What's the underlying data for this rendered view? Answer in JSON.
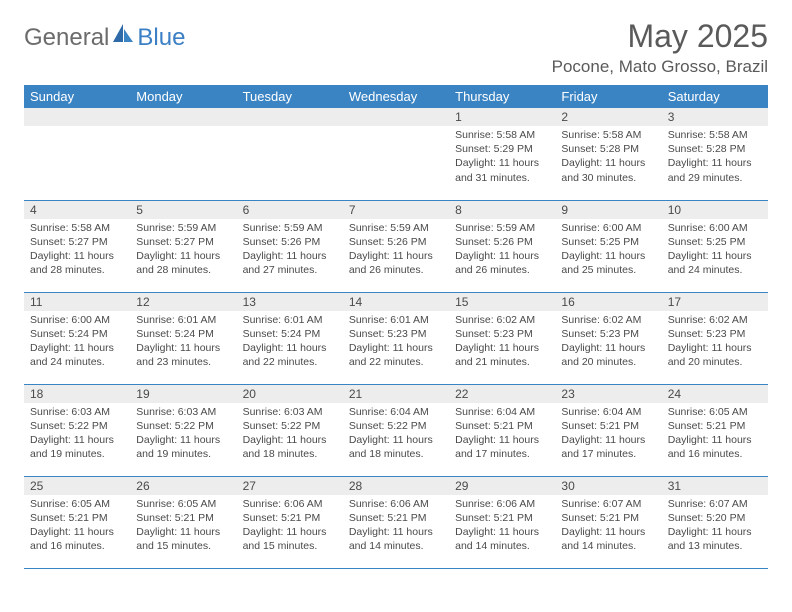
{
  "logo": {
    "text1": "General",
    "text2": "Blue"
  },
  "title": "May 2025",
  "location": "Pocone, Mato Grosso, Brazil",
  "colors": {
    "header_bg": "#3b84c4",
    "header_text": "#ffffff",
    "daynum_bg": "#ededed",
    "text": "#4a4a4a",
    "border": "#3b84c4",
    "logo_gray": "#6b6b6b",
    "logo_blue": "#3b7fc4"
  },
  "weekdays": [
    "Sunday",
    "Monday",
    "Tuesday",
    "Wednesday",
    "Thursday",
    "Friday",
    "Saturday"
  ],
  "weeks": [
    [
      null,
      null,
      null,
      null,
      {
        "n": "1",
        "sr": "Sunrise: 5:58 AM",
        "ss": "Sunset: 5:29 PM",
        "dl": "Daylight: 11 hours and 31 minutes."
      },
      {
        "n": "2",
        "sr": "Sunrise: 5:58 AM",
        "ss": "Sunset: 5:28 PM",
        "dl": "Daylight: 11 hours and 30 minutes."
      },
      {
        "n": "3",
        "sr": "Sunrise: 5:58 AM",
        "ss": "Sunset: 5:28 PM",
        "dl": "Daylight: 11 hours and 29 minutes."
      }
    ],
    [
      {
        "n": "4",
        "sr": "Sunrise: 5:58 AM",
        "ss": "Sunset: 5:27 PM",
        "dl": "Daylight: 11 hours and 28 minutes."
      },
      {
        "n": "5",
        "sr": "Sunrise: 5:59 AM",
        "ss": "Sunset: 5:27 PM",
        "dl": "Daylight: 11 hours and 28 minutes."
      },
      {
        "n": "6",
        "sr": "Sunrise: 5:59 AM",
        "ss": "Sunset: 5:26 PM",
        "dl": "Daylight: 11 hours and 27 minutes."
      },
      {
        "n": "7",
        "sr": "Sunrise: 5:59 AM",
        "ss": "Sunset: 5:26 PM",
        "dl": "Daylight: 11 hours and 26 minutes."
      },
      {
        "n": "8",
        "sr": "Sunrise: 5:59 AM",
        "ss": "Sunset: 5:26 PM",
        "dl": "Daylight: 11 hours and 26 minutes."
      },
      {
        "n": "9",
        "sr": "Sunrise: 6:00 AM",
        "ss": "Sunset: 5:25 PM",
        "dl": "Daylight: 11 hours and 25 minutes."
      },
      {
        "n": "10",
        "sr": "Sunrise: 6:00 AM",
        "ss": "Sunset: 5:25 PM",
        "dl": "Daylight: 11 hours and 24 minutes."
      }
    ],
    [
      {
        "n": "11",
        "sr": "Sunrise: 6:00 AM",
        "ss": "Sunset: 5:24 PM",
        "dl": "Daylight: 11 hours and 24 minutes."
      },
      {
        "n": "12",
        "sr": "Sunrise: 6:01 AM",
        "ss": "Sunset: 5:24 PM",
        "dl": "Daylight: 11 hours and 23 minutes."
      },
      {
        "n": "13",
        "sr": "Sunrise: 6:01 AM",
        "ss": "Sunset: 5:24 PM",
        "dl": "Daylight: 11 hours and 22 minutes."
      },
      {
        "n": "14",
        "sr": "Sunrise: 6:01 AM",
        "ss": "Sunset: 5:23 PM",
        "dl": "Daylight: 11 hours and 22 minutes."
      },
      {
        "n": "15",
        "sr": "Sunrise: 6:02 AM",
        "ss": "Sunset: 5:23 PM",
        "dl": "Daylight: 11 hours and 21 minutes."
      },
      {
        "n": "16",
        "sr": "Sunrise: 6:02 AM",
        "ss": "Sunset: 5:23 PM",
        "dl": "Daylight: 11 hours and 20 minutes."
      },
      {
        "n": "17",
        "sr": "Sunrise: 6:02 AM",
        "ss": "Sunset: 5:23 PM",
        "dl": "Daylight: 11 hours and 20 minutes."
      }
    ],
    [
      {
        "n": "18",
        "sr": "Sunrise: 6:03 AM",
        "ss": "Sunset: 5:22 PM",
        "dl": "Daylight: 11 hours and 19 minutes."
      },
      {
        "n": "19",
        "sr": "Sunrise: 6:03 AM",
        "ss": "Sunset: 5:22 PM",
        "dl": "Daylight: 11 hours and 19 minutes."
      },
      {
        "n": "20",
        "sr": "Sunrise: 6:03 AM",
        "ss": "Sunset: 5:22 PM",
        "dl": "Daylight: 11 hours and 18 minutes."
      },
      {
        "n": "21",
        "sr": "Sunrise: 6:04 AM",
        "ss": "Sunset: 5:22 PM",
        "dl": "Daylight: 11 hours and 18 minutes."
      },
      {
        "n": "22",
        "sr": "Sunrise: 6:04 AM",
        "ss": "Sunset: 5:21 PM",
        "dl": "Daylight: 11 hours and 17 minutes."
      },
      {
        "n": "23",
        "sr": "Sunrise: 6:04 AM",
        "ss": "Sunset: 5:21 PM",
        "dl": "Daylight: 11 hours and 17 minutes."
      },
      {
        "n": "24",
        "sr": "Sunrise: 6:05 AM",
        "ss": "Sunset: 5:21 PM",
        "dl": "Daylight: 11 hours and 16 minutes."
      }
    ],
    [
      {
        "n": "25",
        "sr": "Sunrise: 6:05 AM",
        "ss": "Sunset: 5:21 PM",
        "dl": "Daylight: 11 hours and 16 minutes."
      },
      {
        "n": "26",
        "sr": "Sunrise: 6:05 AM",
        "ss": "Sunset: 5:21 PM",
        "dl": "Daylight: 11 hours and 15 minutes."
      },
      {
        "n": "27",
        "sr": "Sunrise: 6:06 AM",
        "ss": "Sunset: 5:21 PM",
        "dl": "Daylight: 11 hours and 15 minutes."
      },
      {
        "n": "28",
        "sr": "Sunrise: 6:06 AM",
        "ss": "Sunset: 5:21 PM",
        "dl": "Daylight: 11 hours and 14 minutes."
      },
      {
        "n": "29",
        "sr": "Sunrise: 6:06 AM",
        "ss": "Sunset: 5:21 PM",
        "dl": "Daylight: 11 hours and 14 minutes."
      },
      {
        "n": "30",
        "sr": "Sunrise: 6:07 AM",
        "ss": "Sunset: 5:21 PM",
        "dl": "Daylight: 11 hours and 14 minutes."
      },
      {
        "n": "31",
        "sr": "Sunrise: 6:07 AM",
        "ss": "Sunset: 5:20 PM",
        "dl": "Daylight: 11 hours and 13 minutes."
      }
    ]
  ]
}
